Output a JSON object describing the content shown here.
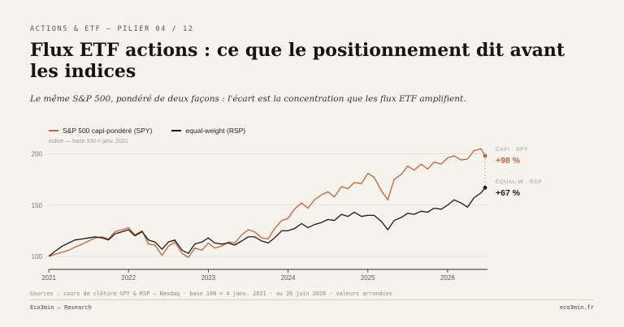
{
  "header": {
    "kicker": "ACTIONS & ETF — PILIER 04 / 12",
    "title": "Flux ETF actions : ce que le positionnement dit avant les indices",
    "subtitle": "Le même S&P 500, pondéré de deux façons : l'écart est la concentration que les flux ETF amplifient."
  },
  "colors": {
    "spy": "#c4623b",
    "rsp": "#1a1a1a",
    "axis": "#2a2a2a",
    "grid": "#e3ded3"
  },
  "chart_data": {
    "type": "line",
    "note": "indice — base 100 = janv. 2021",
    "xlabel": "",
    "ylabel": "",
    "xlim": [
      2021.0,
      2026.5
    ],
    "ylim": [
      96,
      206
    ],
    "yticks": [
      100,
      150,
      200
    ],
    "xticks": [
      "2021",
      "2022",
      "2023",
      "2024",
      "2025",
      "2026"
    ],
    "grid": true,
    "legend_position": "top-left",
    "series": [
      {
        "name": "S&P 500 capi-pondéré (SPY)",
        "end_tag": "CAPI · SPY",
        "end_label": "+98 %",
        "x": [
          2021.0,
          2021.08,
          2021.17,
          2021.25,
          2021.33,
          2021.42,
          2021.5,
          2021.58,
          2021.67,
          2021.75,
          2021.83,
          2021.92,
          2022.0,
          2022.08,
          2022.17,
          2022.25,
          2022.33,
          2022.42,
          2022.5,
          2022.58,
          2022.67,
          2022.75,
          2022.83,
          2022.92,
          2023.0,
          2023.08,
          2023.17,
          2023.25,
          2023.33,
          2023.42,
          2023.5,
          2023.58,
          2023.67,
          2023.75,
          2023.83,
          2023.92,
          2024.0,
          2024.08,
          2024.17,
          2024.25,
          2024.33,
          2024.42,
          2024.5,
          2024.58,
          2024.67,
          2024.75,
          2024.83,
          2024.92,
          2025.0,
          2025.08,
          2025.17,
          2025.25,
          2025.33,
          2025.42,
          2025.5,
          2025.58,
          2025.67,
          2025.75,
          2025.83,
          2025.92,
          2026.0,
          2026.08,
          2026.17,
          2026.25,
          2026.33,
          2026.42,
          2026.47
        ],
        "values": [
          100,
          102,
          104,
          106,
          109,
          112,
          115,
          118,
          119,
          117,
          124,
          126,
          128,
          121,
          125,
          112,
          111,
          101,
          110,
          114,
          103,
          99,
          108,
          106,
          113,
          108,
          110,
          114,
          113,
          121,
          126,
          124,
          118,
          117,
          127,
          135,
          137,
          146,
          152,
          147,
          155,
          160,
          163,
          158,
          168,
          166,
          172,
          171,
          181,
          177,
          164,
          155,
          175,
          180,
          188,
          184,
          190,
          185,
          192,
          190,
          196,
          198,
          194,
          195,
          203,
          205,
          198
        ]
      },
      {
        "name": "equal-weight (RSP)",
        "end_tag": "EQUAL-W · RSP",
        "end_label": "+67 %",
        "x": [
          2021.0,
          2021.08,
          2021.17,
          2021.25,
          2021.33,
          2021.42,
          2021.5,
          2021.58,
          2021.67,
          2021.75,
          2021.83,
          2021.92,
          2022.0,
          2022.08,
          2022.17,
          2022.25,
          2022.33,
          2022.42,
          2022.5,
          2022.58,
          2022.67,
          2022.75,
          2022.83,
          2022.92,
          2023.0,
          2023.08,
          2023.17,
          2023.25,
          2023.33,
          2023.42,
          2023.5,
          2023.58,
          2023.67,
          2023.75,
          2023.83,
          2023.92,
          2024.0,
          2024.08,
          2024.17,
          2024.25,
          2024.33,
          2024.42,
          2024.5,
          2024.58,
          2024.67,
          2024.75,
          2024.83,
          2024.92,
          2025.0,
          2025.08,
          2025.17,
          2025.25,
          2025.33,
          2025.42,
          2025.5,
          2025.58,
          2025.67,
          2025.75,
          2025.83,
          2025.92,
          2026.0,
          2026.08,
          2026.17,
          2026.25,
          2026.33,
          2026.42,
          2026.47
        ],
        "values": [
          100,
          105,
          110,
          113,
          116,
          117,
          118,
          119,
          118,
          116,
          122,
          124,
          126,
          120,
          124,
          116,
          114,
          107,
          114,
          116,
          106,
          103,
          112,
          114,
          118,
          113,
          112,
          113,
          111,
          115,
          119,
          119,
          115,
          113,
          118,
          125,
          125,
          127,
          132,
          128,
          131,
          133,
          136,
          135,
          141,
          139,
          143,
          139,
          140,
          140,
          134,
          126,
          135,
          138,
          142,
          141,
          144,
          143,
          147,
          146,
          150,
          155,
          152,
          148,
          157,
          162,
          167
        ]
      }
    ]
  },
  "footer": {
    "source": "Sources : cours de clôture SPY & RSP — Nasdaq · base 100 = 4 janv. 2021 · au 26 juin 2026 · valeurs arrondies",
    "brand": "Eco3min — Research",
    "site": "eco3min.fr"
  }
}
